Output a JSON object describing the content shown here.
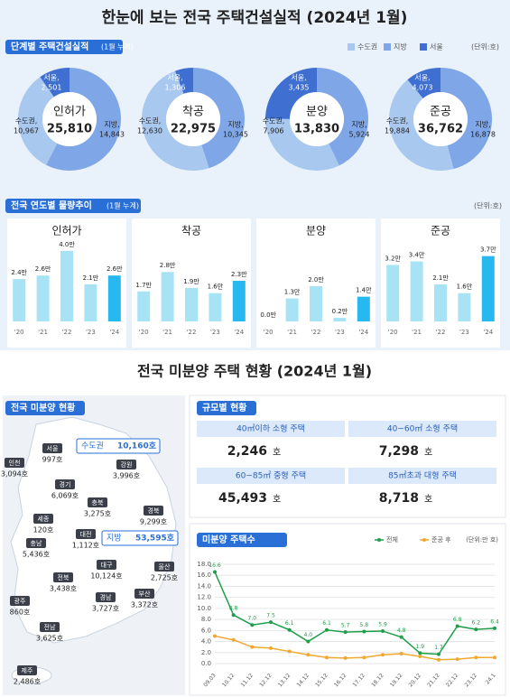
{
  "title": "한눈에 보는 전국 주택건설실적 (2024년 1월)",
  "section1": {
    "label": "단계별 주택건설실적",
    "note": "(1월 누계)",
    "legend": [
      "수도권",
      "지방",
      "서울"
    ],
    "legend_colors": [
      "#a9c8f0",
      "#7fa6e6",
      "#3f6fd0"
    ],
    "unit": "(단위:호)"
  },
  "section2": {
    "label": "전국 연도별 물량추이",
    "note": "(1월 누계)",
    "unit": "(단위:호)"
  },
  "chart_data": [
    {
      "type": "donut",
      "title": "인허가",
      "total": {
        "value": 25810,
        "label": "25,810"
      },
      "categories": [
        "수도권,",
        "지방,",
        "서울,"
      ],
      "values": [
        10967,
        14843,
        2501
      ],
      "value_labels": [
        "10,967",
        "14,843",
        "2,501"
      ],
      "colors": [
        "#a9c8f0",
        "#7fa6e6",
        "#3f6fd0"
      ]
    },
    {
      "type": "donut",
      "title": "착공",
      "total": {
        "value": 22975,
        "label": "22,975"
      },
      "categories": [
        "수도권,",
        "지방,",
        "서울,"
      ],
      "values": [
        12630,
        10345,
        1306
      ],
      "value_labels": [
        "12,630",
        "10,345",
        "1,306"
      ],
      "colors": [
        "#a9c8f0",
        "#7fa6e6",
        "#3f6fd0"
      ]
    },
    {
      "type": "donut",
      "title": "분양",
      "total": {
        "value": 13830,
        "label": "13,830"
      },
      "categories": [
        "수도권,",
        "지방,",
        "서울,"
      ],
      "values": [
        7906,
        5924,
        3435
      ],
      "value_labels": [
        "7,906",
        "5,924",
        "3,435"
      ],
      "colors": [
        "#a9c8f0",
        "#7fa6e6",
        "#3f6fd0"
      ]
    },
    {
      "type": "donut",
      "title": "준공",
      "total": {
        "value": 36762,
        "label": "36,762"
      },
      "categories": [
        "수도권,",
        "지방,",
        "서울,"
      ],
      "values": [
        19884,
        16878,
        4073
      ],
      "value_labels": [
        "19,884",
        "16,878",
        "4,073"
      ],
      "colors": [
        "#a9c8f0",
        "#7fa6e6",
        "#3f6fd0"
      ]
    },
    {
      "type": "bar",
      "title": "인허가",
      "categories": [
        "'20",
        "'21",
        "'22",
        "'23",
        "'24"
      ],
      "values": [
        2.4,
        2.6,
        4.0,
        2.1,
        2.6
      ],
      "value_labels": [
        "2.4만",
        "2.6만",
        "4.0만",
        "2.1만",
        "2.6만"
      ],
      "color": "#a8e3f5",
      "highlight_color": "#27b8f0",
      "ylim": [
        0,
        4.5
      ]
    },
    {
      "type": "bar",
      "title": "착공",
      "categories": [
        "'20",
        "'21",
        "'22",
        "'23",
        "'24"
      ],
      "values": [
        1.7,
        2.8,
        1.9,
        1.6,
        2.3
      ],
      "value_labels": [
        "1.7만",
        "2.8만",
        "1.9만",
        "1.6만",
        "2.3만"
      ],
      "color": "#a8e3f5",
      "highlight_color": "#27b8f0",
      "ylim": [
        0,
        4.5
      ]
    },
    {
      "type": "bar",
      "title": "분양",
      "categories": [
        "'20",
        "'21",
        "'22",
        "'23",
        "'24"
      ],
      "values": [
        0.0,
        1.3,
        2.0,
        0.2,
        1.4
      ],
      "value_labels": [
        "0.0만",
        "1.3만",
        "2.0만",
        "0.2만",
        "1.4만"
      ],
      "color": "#a8e3f5",
      "highlight_color": "#27b8f0",
      "ylim": [
        0,
        4.5
      ]
    },
    {
      "type": "bar",
      "title": "준공",
      "categories": [
        "'20",
        "'21",
        "'22",
        "'23",
        "'24"
      ],
      "values": [
        3.2,
        3.4,
        2.1,
        1.6,
        3.7
      ],
      "value_labels": [
        "3.2만",
        "3.4만",
        "2.1만",
        "1.6만",
        "3.7만"
      ],
      "color": "#a8e3f5",
      "highlight_color": "#27b8f0",
      "ylim": [
        0,
        4.5
      ]
    },
    {
      "type": "line",
      "title": "미분양 주택수",
      "unit": "(단위:만 호)",
      "x": [
        "09.03",
        "10.12",
        "11.12",
        "12.12",
        "13.12",
        "14.12",
        "15.12",
        "16.12",
        "17.12",
        "18.12",
        "19.12",
        "20.12",
        "21.12",
        "22.12",
        "23.12",
        "24.1"
      ],
      "series": [
        {
          "name": "전체",
          "color": "#1f9e4a",
          "values": [
            16.6,
            8.8,
            7.0,
            7.5,
            6.1,
            4.0,
            6.1,
            5.7,
            5.8,
            5.9,
            4.8,
            1.9,
            1.7,
            6.8,
            6.2,
            6.4
          ],
          "value_labels": [
            "16.6",
            "8.8",
            "7.0",
            "7.5",
            "6.1",
            "4.0",
            "6.1",
            "5.7",
            "5.8",
            "5.9",
            "4.8",
            "1.9",
            "1.7",
            "6.8",
            "6.2",
            "6.4"
          ]
        },
        {
          "name": "준공 후",
          "color": "#f0a830",
          "values": [
            5.0,
            4.3,
            3.0,
            2.8,
            2.2,
            1.6,
            1.1,
            1.0,
            1.1,
            1.6,
            1.8,
            1.3,
            0.7,
            0.8,
            1.1,
            1.1
          ]
        }
      ],
      "ylim": [
        0,
        18
      ],
      "yticks": [
        {
          "value": 0,
          "label": "0.0"
        },
        {
          "value": 2,
          "label": "2.0"
        },
        {
          "value": 4,
          "label": "4.0"
        },
        {
          "value": 6,
          "label": "6.0"
        },
        {
          "value": 8,
          "label": "8.0"
        },
        {
          "value": 10,
          "label": "10.0"
        },
        {
          "value": 12,
          "label": "12.0"
        },
        {
          "value": 14,
          "label": "14.0"
        },
        {
          "value": 16,
          "label": "16.0"
        },
        {
          "value": 18,
          "label": "18.0"
        }
      ]
    }
  ],
  "title2": "전국 미분양 주택 현황 (2024년 1월)",
  "map": {
    "label": "전국 미분양 현황",
    "capital": {
      "name": "수도권",
      "count": "10,160호"
    },
    "provinces": {
      "name": "지방",
      "count": "53,595호"
    },
    "regions": [
      {
        "name": "인천",
        "count": "3,094호"
      },
      {
        "name": "서울",
        "count": "997호"
      },
      {
        "name": "경기",
        "count": "6,069호"
      },
      {
        "name": "강원",
        "count": "3,996호"
      },
      {
        "name": "충북",
        "count": "3,275호"
      },
      {
        "name": "세종",
        "count": "120호"
      },
      {
        "name": "경북",
        "count": "9,299호"
      },
      {
        "name": "충남",
        "count": "5,436호"
      },
      {
        "name": "대전",
        "count": "1,112호"
      },
      {
        "name": "대구",
        "count": "10,124호"
      },
      {
        "name": "울산",
        "count": "2,725호"
      },
      {
        "name": "전북",
        "count": "3,438호"
      },
      {
        "name": "경남",
        "count": "3,727호"
      },
      {
        "name": "부산",
        "count": "3,372호"
      },
      {
        "name": "광주",
        "count": "860호"
      },
      {
        "name": "전남",
        "count": "3,625호"
      },
      {
        "name": "제주",
        "count": "2,486호"
      }
    ]
  },
  "size_table": {
    "label": "규모별 현황",
    "unit": "호",
    "cells": [
      {
        "label": "40㎡이하 소형 주택",
        "value": "2,246"
      },
      {
        "label": "40~60㎡ 소형 주택",
        "value": "7,298"
      },
      {
        "label": "60~85㎡ 중형 주택",
        "value": "45,493"
      },
      {
        "label": "85㎡초과 대형 주택",
        "value": "8,718"
      }
    ]
  }
}
